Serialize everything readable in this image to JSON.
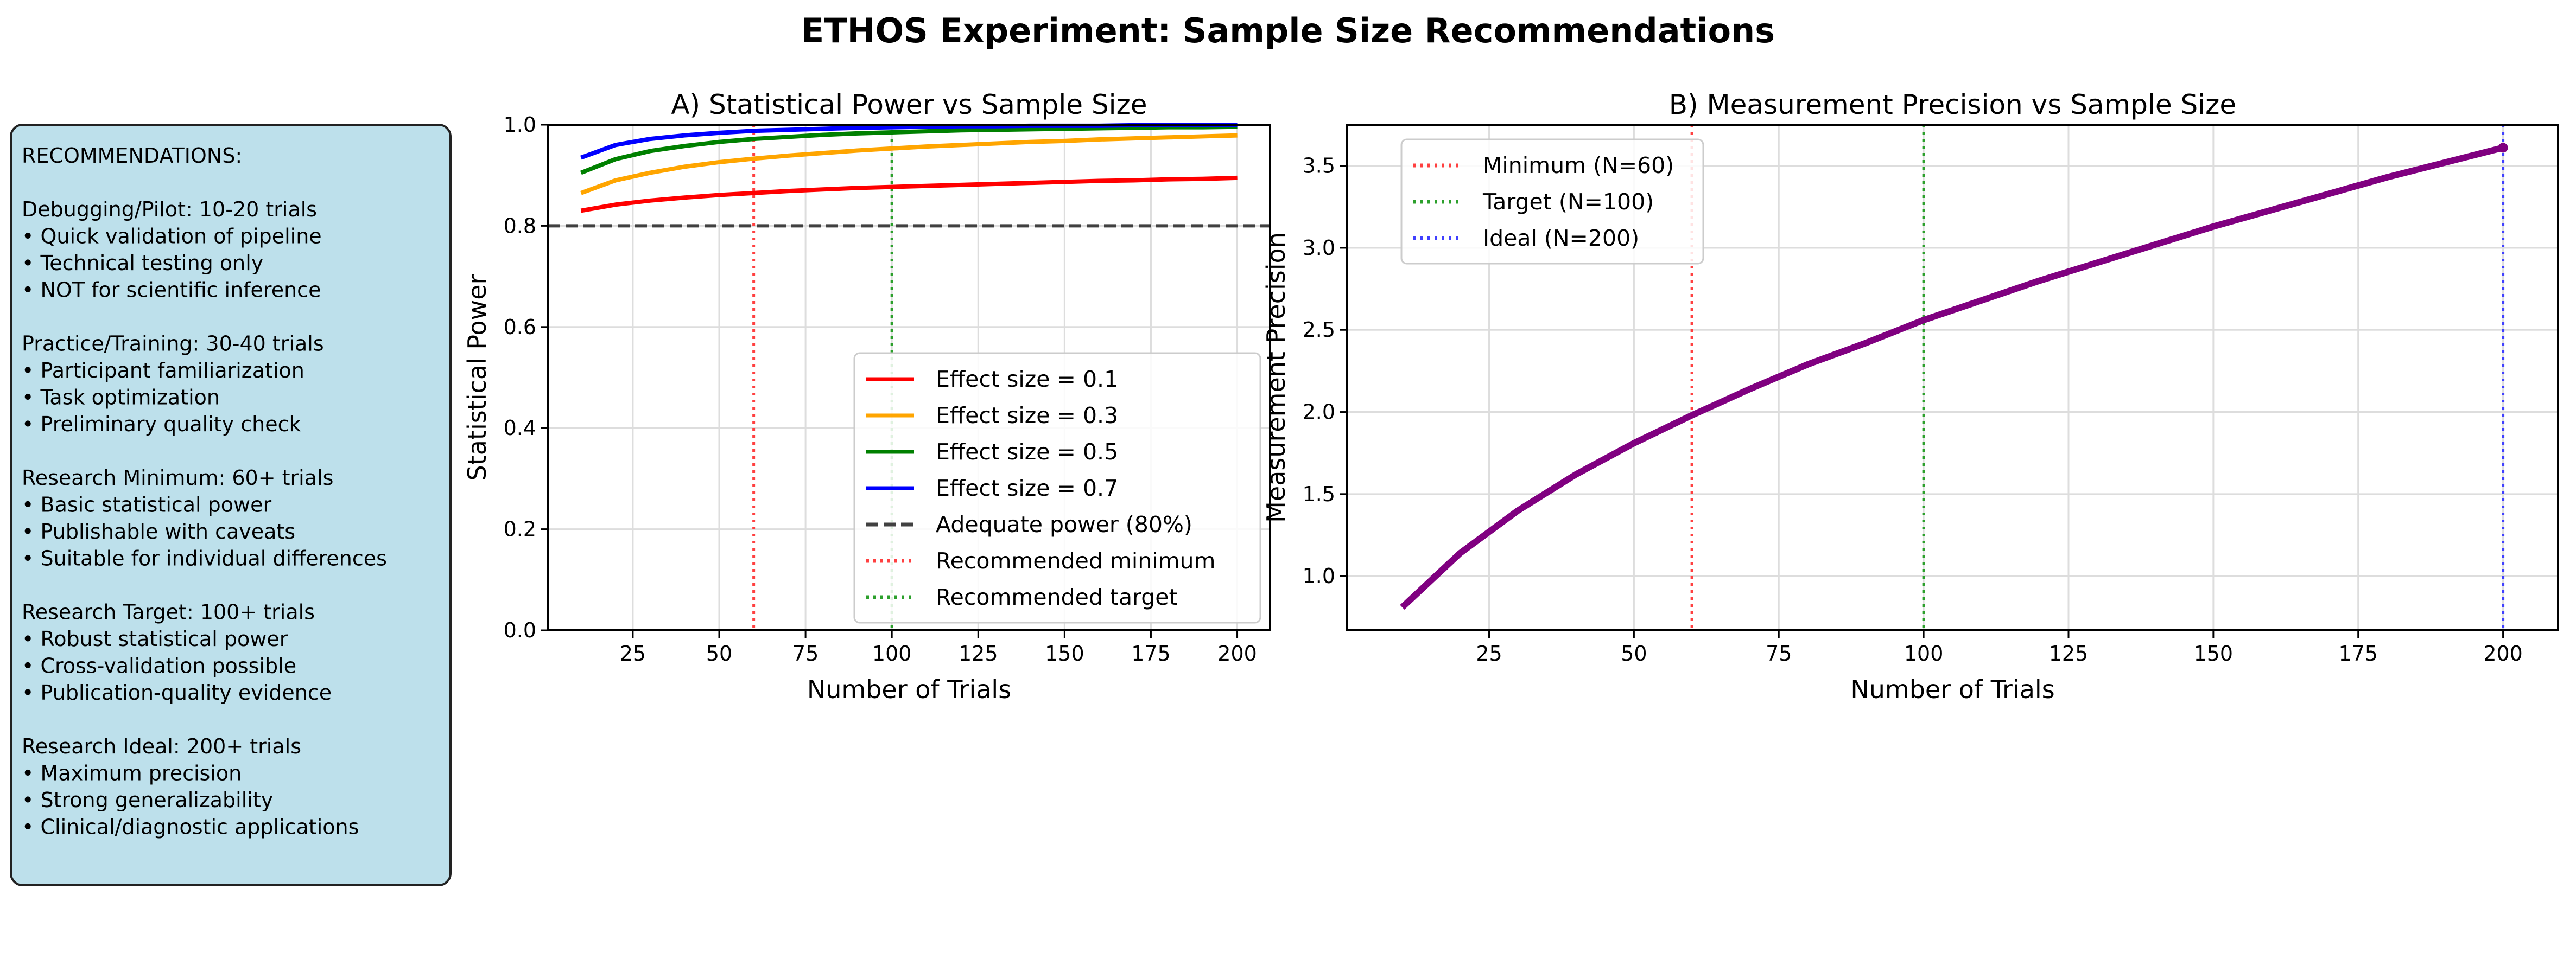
{
  "suptitle": "ETHOS Experiment: Sample Size Recommendations",
  "chart_data": [
    {
      "type": "line",
      "title": "A) Statistical Power vs Sample Size",
      "xlabel": "Number of Trials",
      "ylabel": "Statistical Power",
      "xlim": [
        0.5,
        209.5
      ],
      "ylim": [
        0,
        1.0
      ],
      "xticks": [
        "25",
        "50",
        "75",
        "100",
        "125",
        "150",
        "175",
        "200"
      ],
      "yticks": [
        "0.0",
        "0.2",
        "0.4",
        "0.6",
        "0.8",
        "1.0"
      ],
      "grid": true,
      "legend_position": "center-right",
      "x": [
        10,
        20,
        30,
        40,
        50,
        60,
        70,
        80,
        90,
        100,
        110,
        120,
        130,
        140,
        150,
        160,
        170,
        180,
        190,
        200
      ],
      "series": [
        {
          "name": "Effect size = 0.1",
          "color": "#ff0000",
          "values": [
            0.83,
            0.842,
            0.85,
            0.856,
            0.861,
            0.865,
            0.869,
            0.872,
            0.875,
            0.877,
            0.879,
            0.881,
            0.883,
            0.885,
            0.887,
            0.889,
            0.89,
            0.892,
            0.893,
            0.895
          ]
        },
        {
          "name": "Effect size = 0.3",
          "color": "#ffa500",
          "values": [
            0.865,
            0.89,
            0.905,
            0.917,
            0.926,
            0.933,
            0.939,
            0.944,
            0.949,
            0.953,
            0.957,
            0.96,
            0.963,
            0.966,
            0.968,
            0.971,
            0.973,
            0.975,
            0.977,
            0.979
          ]
        },
        {
          "name": "Effect size = 0.5",
          "color": "#008000",
          "values": [
            0.905,
            0.932,
            0.948,
            0.958,
            0.966,
            0.972,
            0.976,
            0.98,
            0.983,
            0.985,
            0.987,
            0.989,
            0.99,
            0.991,
            0.992,
            0.993,
            0.994,
            0.995,
            0.995,
            0.996
          ]
        },
        {
          "name": "Effect size = 0.7",
          "color": "#0000ff",
          "values": [
            0.935,
            0.96,
            0.972,
            0.979,
            0.984,
            0.988,
            0.99,
            0.992,
            0.994,
            0.995,
            0.996,
            0.997,
            0.997,
            0.998,
            0.998,
            0.998,
            0.999,
            0.999,
            0.999,
            0.999
          ]
        }
      ],
      "reference_lines": [
        {
          "name": "Adequate power (80%)",
          "orientation": "horizontal",
          "value": 0.8,
          "color": "#404040",
          "style": "dashed"
        },
        {
          "name": "Recommended minimum",
          "orientation": "vertical",
          "value": 60,
          "color": "#ff4040",
          "style": "dotted"
        },
        {
          "name": "Recommended target",
          "orientation": "vertical",
          "value": 100,
          "color": "#2ca02c",
          "style": "dotted"
        }
      ],
      "annotation_box": {
        "color": "#add8e6",
        "lines": [
          "RECOMMENDATIONS:",
          "",
          "Debugging/Pilot: 10-20 trials",
          "• Quick validation of pipeline",
          "• Technical testing only",
          "• NOT for scientific inference",
          "",
          "Practice/Training: 30-40 trials",
          "• Participant familiarization",
          "• Task optimization",
          "• Preliminary quality check",
          "",
          "Research Minimum: 60+ trials",
          "• Basic statistical power",
          "• Publishable with caveats",
          "• Suitable for individual differences",
          "",
          "Research Target: 100+ trials",
          "• Robust statistical power",
          "• Cross-validation possible",
          "• Publication-quality evidence",
          "",
          "Research Ideal: 200+ trials",
          "• Maximum precision",
          "• Strong generalizability",
          "• Clinical/diagnostic applications"
        ]
      }
    },
    {
      "type": "line",
      "title": "B) Measurement Precision vs Sample Size",
      "xlabel": "Number of Trials",
      "ylabel": "Measurement Precision",
      "xlim": [
        0.5,
        209.5
      ],
      "ylim": [
        0.67,
        3.75
      ],
      "xticks": [
        "25",
        "50",
        "75",
        "100",
        "125",
        "150",
        "175",
        "200"
      ],
      "yticks": [
        "1.0",
        "1.5",
        "2.0",
        "2.5",
        "3.0",
        "3.5"
      ],
      "grid": true,
      "legend_position": "upper-left",
      "x": [
        10,
        20,
        30,
        40,
        50,
        60,
        70,
        80,
        90,
        100,
        110,
        120,
        130,
        140,
        150,
        160,
        170,
        180,
        190,
        200
      ],
      "series": [
        {
          "color": "#800080",
          "values": [
            0.81,
            1.14,
            1.4,
            1.62,
            1.81,
            1.98,
            2.14,
            2.29,
            2.42,
            2.56,
            2.68,
            2.8,
            2.91,
            3.02,
            3.13,
            3.23,
            3.33,
            3.43,
            3.52,
            3.61
          ]
        }
      ],
      "reference_lines": [
        {
          "name": "Minimum (N=60)",
          "orientation": "vertical",
          "value": 60,
          "color": "#ff4040",
          "style": "dotted"
        },
        {
          "name": "Target (N=100)",
          "orientation": "vertical",
          "value": 100,
          "color": "#2ca02c",
          "style": "dotted"
        },
        {
          "name": "Ideal (N=200)",
          "orientation": "vertical",
          "value": 200,
          "color": "#4040ff",
          "style": "dotted"
        }
      ]
    }
  ]
}
